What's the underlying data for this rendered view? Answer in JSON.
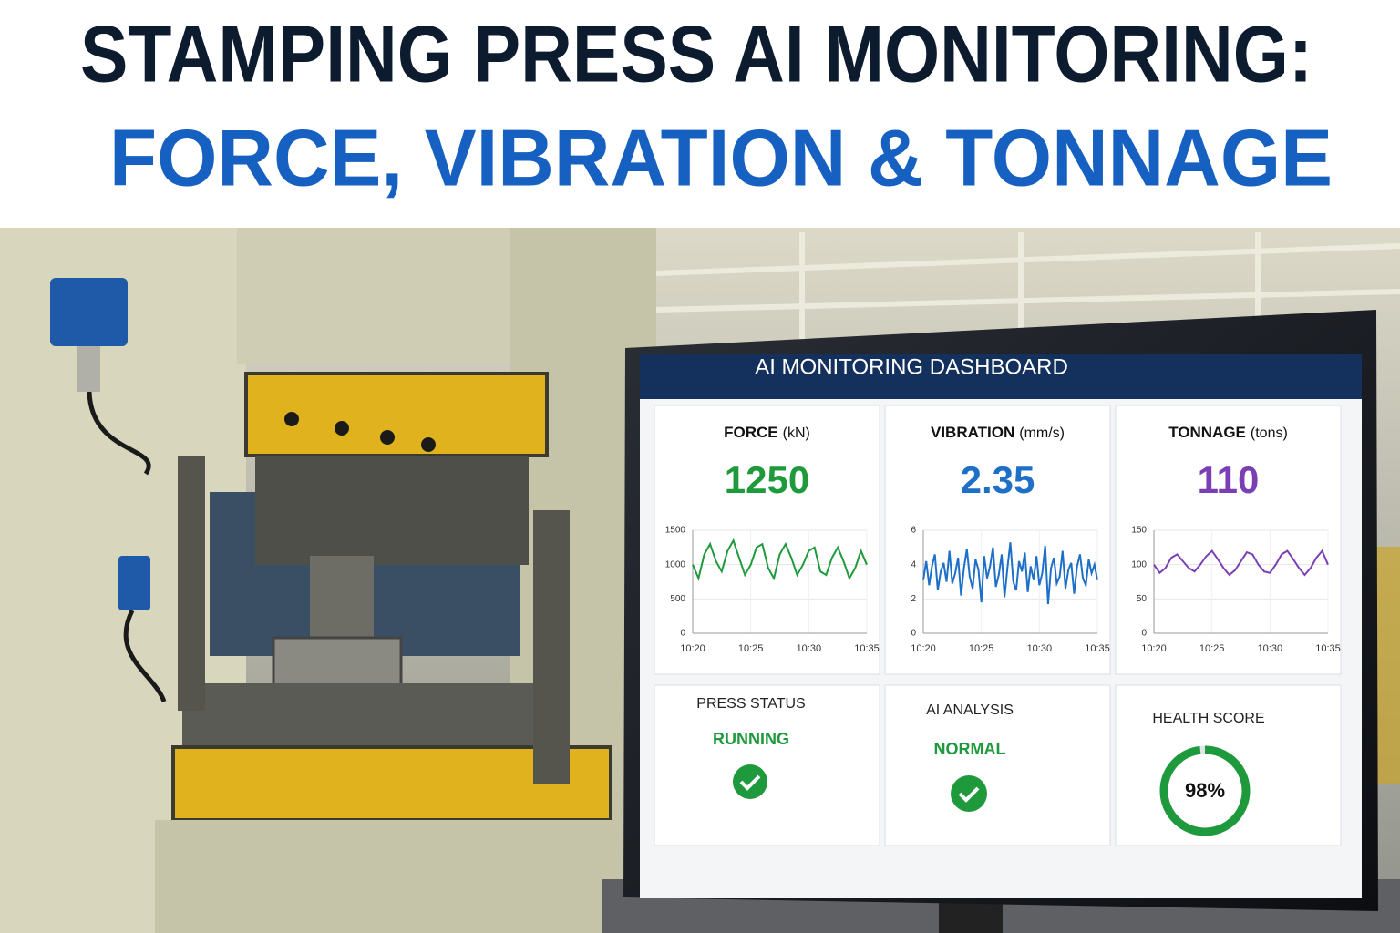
{
  "header": {
    "line1": "STAMPING PRESS AI MONITORING:",
    "line2": "FORCE, VIBRATION & TONNAGE"
  },
  "dashboard": {
    "title": "AI MONITORING DASHBOARD",
    "status": [
      {
        "label": "PRESS STATUS",
        "value": "RUNNING"
      },
      {
        "label": "AI ANALYSIS",
        "value": "NORMAL"
      }
    ],
    "health": {
      "label": "HEALTH SCORE",
      "value": 98,
      "value_label": "98%"
    }
  },
  "chart_data": [
    {
      "type": "line",
      "title": "FORCE",
      "unit": "(kN)",
      "current": 1250,
      "x": [
        0,
        0.5,
        1,
        1.5,
        2,
        2.5,
        3,
        3.5,
        4,
        4.5,
        5,
        5.5,
        6,
        6.5,
        7,
        7.5,
        8,
        8.5,
        9,
        9.5,
        10,
        10.5,
        11,
        11.5,
        12,
        12.5,
        13,
        13.5,
        14,
        14.5,
        15
      ],
      "series": [
        {
          "color": "#1e9a3c",
          "values": [
            1000,
            800,
            1150,
            1300,
            1050,
            900,
            1200,
            1350,
            1100,
            850,
            1000,
            1250,
            1300,
            950,
            800,
            1150,
            1300,
            1100,
            850,
            1000,
            1200,
            1250,
            900,
            850,
            1100,
            1250,
            1050,
            800,
            950,
            1200,
            1000
          ]
        }
      ],
      "xlim": [
        0,
        15
      ],
      "xticks": [
        {
          "value": 0,
          "label": "10:20"
        },
        {
          "value": 5,
          "label": "10:25"
        },
        {
          "value": 10,
          "label": "10:30"
        },
        {
          "value": 15,
          "label": "10:35"
        }
      ],
      "ylim": [
        0,
        1500
      ],
      "yticks": [
        0,
        500,
        1000,
        1500
      ],
      "grid": true
    },
    {
      "type": "line",
      "title": "VIBRATION",
      "unit": "(mm/s)",
      "current": 2.35,
      "x": [
        0,
        0.25,
        0.5,
        0.75,
        1,
        1.25,
        1.5,
        1.75,
        2,
        2.25,
        2.5,
        2.75,
        3,
        3.25,
        3.5,
        3.75,
        4,
        4.25,
        4.5,
        4.75,
        5,
        5.25,
        5.5,
        5.75,
        6,
        6.25,
        6.5,
        6.75,
        7,
        7.25,
        7.5,
        7.75,
        8,
        8.25,
        8.5,
        8.75,
        9,
        9.25,
        9.5,
        9.75,
        10,
        10.25,
        10.5,
        10.75,
        11,
        11.25,
        11.5,
        11.75,
        12,
        12.25,
        12.5,
        12.75,
        13,
        13.25,
        13.5,
        13.75,
        14,
        14.25,
        14.5,
        14.75,
        15
      ],
      "series": [
        {
          "color": "#1e6fc8",
          "values": [
            3.1,
            4.2,
            2.8,
            3.9,
            4.6,
            2.5,
            3.6,
            4.1,
            3.0,
            4.8,
            2.9,
            3.5,
            4.4,
            2.2,
            3.8,
            4.9,
            3.3,
            2.6,
            4.3,
            3.7,
            1.8,
            4.5,
            3.2,
            3.9,
            5.0,
            2.7,
            3.4,
            4.6,
            2.1,
            3.8,
            5.3,
            3.0,
            2.5,
            4.2,
            3.6,
            4.7,
            2.4,
            3.9,
            3.1,
            4.5,
            2.8,
            3.5,
            5.1,
            1.7,
            3.8,
            4.4,
            2.9,
            3.3,
            4.8,
            2.6,
            3.7,
            4.1,
            2.3,
            3.9,
            4.6,
            3.2,
            2.8,
            4.3,
            3.5,
            4.0,
            3.1
          ]
        }
      ],
      "xlim": [
        0,
        15
      ],
      "xticks": [
        {
          "value": 0,
          "label": "10:20"
        },
        {
          "value": 5,
          "label": "10:25"
        },
        {
          "value": 10,
          "label": "10:30"
        },
        {
          "value": 15,
          "label": "10:35"
        }
      ],
      "ylim": [
        0,
        6
      ],
      "yticks": [
        0,
        2,
        4,
        6
      ],
      "grid": true
    },
    {
      "type": "line",
      "title": "TONNAGE",
      "unit": "(tons)",
      "current": 110,
      "x": [
        0,
        0.5,
        1,
        1.5,
        2,
        2.5,
        3,
        3.5,
        4,
        4.5,
        5,
        5.5,
        6,
        6.5,
        7,
        7.5,
        8,
        8.5,
        9,
        9.5,
        10,
        10.5,
        11,
        11.5,
        12,
        12.5,
        13,
        13.5,
        14,
        14.5,
        15
      ],
      "series": [
        {
          "color": "#7b3fb5",
          "values": [
            100,
            88,
            95,
            110,
            115,
            105,
            95,
            90,
            100,
            112,
            120,
            108,
            95,
            85,
            92,
            105,
            118,
            115,
            100,
            90,
            88,
            100,
            115,
            120,
            108,
            95,
            85,
            95,
            110,
            120,
            100
          ]
        }
      ],
      "xlim": [
        0,
        15
      ],
      "xticks": [
        {
          "value": 0,
          "label": "10:20"
        },
        {
          "value": 5,
          "label": "10:25"
        },
        {
          "value": 10,
          "label": "10:30"
        },
        {
          "value": 15,
          "label": "10:35"
        }
      ],
      "ylim": [
        0,
        150
      ],
      "yticks": [
        0,
        50,
        100,
        150
      ],
      "grid": true
    }
  ]
}
